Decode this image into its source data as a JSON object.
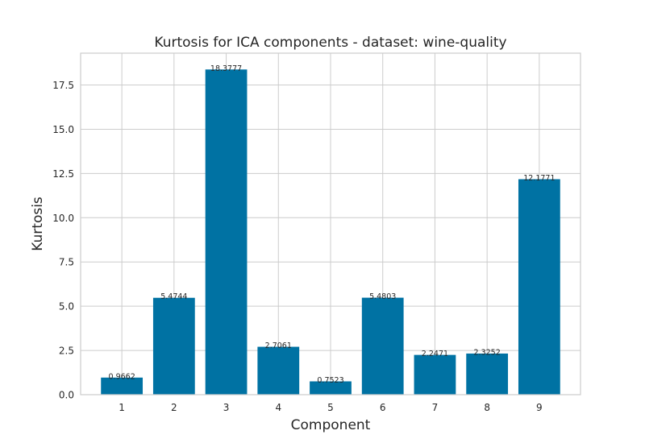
{
  "chart_data": {
    "type": "bar",
    "title": "Kurtosis for ICA components - dataset: wine-quality",
    "xlabel": "Component",
    "ylabel": "Kurtosis",
    "categories": [
      "1",
      "2",
      "3",
      "4",
      "5",
      "6",
      "7",
      "8",
      "9"
    ],
    "values": [
      0.9662,
      5.4744,
      18.3777,
      2.7061,
      0.7523,
      5.4803,
      2.2471,
      2.3252,
      12.1771
    ],
    "value_labels": [
      "0.9662",
      "5.4744",
      "18.3777",
      "2.7061",
      "0.7523",
      "5.4803",
      "2.2471",
      "2.3252",
      "12.1771"
    ],
    "ylim": [
      0,
      19.3
    ],
    "yticks": [
      0,
      2.5,
      5,
      7.5,
      10,
      12.5,
      15,
      17.5
    ],
    "ytick_labels": [
      "0.0",
      "2.5",
      "5.0",
      "7.5",
      "10.0",
      "12.5",
      "15.0",
      "17.5"
    ],
    "bar_color": "#0072a3",
    "grid": true,
    "legend": "none"
  }
}
